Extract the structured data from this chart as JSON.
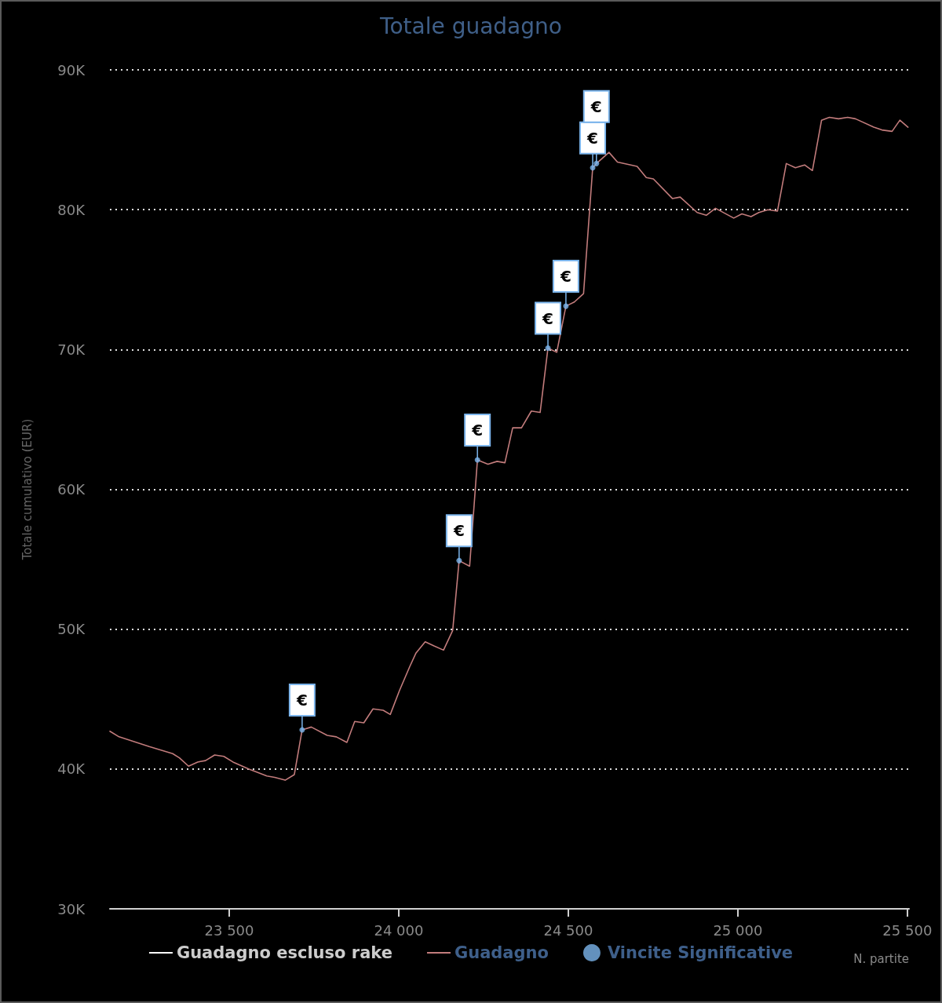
{
  "chart_data": {
    "type": "line",
    "title": "Totale guadagno",
    "xlabel": "N. partite",
    "ylabel": "Totale cumulativo (EUR)",
    "xlim": [
      23148,
      25505
    ],
    "xticks": [
      {
        "value": 23500,
        "label": "23 500"
      },
      {
        "value": 24000,
        "label": "24 000"
      },
      {
        "value": 24500,
        "label": "24 500"
      },
      {
        "value": 25000,
        "label": "25 000"
      },
      {
        "value": 25500,
        "label": "25 500"
      }
    ],
    "ylim": [
      30000,
      90000
    ],
    "yticks": [
      {
        "value": 30000,
        "label": "30K"
      },
      {
        "value": 40000,
        "label": "40K"
      },
      {
        "value": 50000,
        "label": "50K"
      },
      {
        "value": 60000,
        "label": "60K"
      },
      {
        "value": 70000,
        "label": "70K"
      },
      {
        "value": 80000,
        "label": "80K"
      },
      {
        "value": 90000,
        "label": "90K"
      }
    ],
    "grid": "y",
    "legend": "bottom",
    "series": [
      {
        "name": "Guadagno escluso rake",
        "color": "#ffffff"
      },
      {
        "name": "Guadagno",
        "color": "#c27c7c",
        "x": [
          23148,
          23175,
          23264,
          23333,
          23353,
          23380,
          23407,
          23430,
          23457,
          23484,
          23511,
          23557,
          23611,
          23634,
          23665,
          23692,
          23715,
          23742,
          23789,
          23816,
          23847,
          23870,
          23897,
          23924,
          23954,
          23975,
          24002,
          24032,
          24051,
          24078,
          24104,
          24132,
          24159,
          24178,
          24209,
          24232,
          24263,
          24290,
          24313,
          24336,
          24362,
          24391,
          24417,
          24440,
          24466,
          24493,
          24518,
          24545,
          24572,
          24583,
          24620,
          24645,
          24703,
          24730,
          24751,
          24807,
          24830,
          24880,
          24907,
          24934,
          24988,
          25012,
          25039,
          25062,
          25089,
          25117,
          25143,
          25170,
          25197,
          25220,
          25247,
          25270,
          25297,
          25324,
          25347,
          25401,
          25425,
          25455,
          25478,
          25502
        ],
        "values": [
          42700,
          42300,
          41600,
          41100,
          40800,
          40200,
          40500,
          40600,
          41000,
          40900,
          40500,
          40000,
          39500,
          39400,
          39200,
          39600,
          42800,
          43000,
          42400,
          42300,
          41900,
          43400,
          43300,
          44300,
          44200,
          43900,
          45600,
          47300,
          48300,
          49100,
          48800,
          48500,
          49900,
          54900,
          54500,
          62100,
          61800,
          62000,
          61900,
          64400,
          64400,
          65600,
          65500,
          70100,
          69800,
          73100,
          73400,
          74000,
          83000,
          83300,
          84100,
          83400,
          83100,
          82300,
          82200,
          80800,
          80900,
          79800,
          79600,
          80100,
          79400,
          79700,
          79500,
          79800,
          80000,
          79900,
          83300,
          83000,
          83200,
          82800,
          86400,
          86600,
          86500,
          86600,
          86500,
          85900,
          85700,
          85600,
          86400,
          85900
        ]
      },
      {
        "name": "Vincite Significative",
        "type": "scatter",
        "marker": "circle",
        "color": "#7cb5ec",
        "x": [
          23715,
          24178,
          24232,
          24440,
          24493,
          24572,
          24583
        ],
        "values": [
          42800,
          54900,
          62100,
          70100,
          73100,
          83000,
          83300
        ]
      }
    ],
    "annotations": [
      {
        "text": "€",
        "x": 23715,
        "y": 42800
      },
      {
        "text": "€",
        "x": 24178,
        "y": 54900
      },
      {
        "text": "€",
        "x": 24232,
        "y": 62100
      },
      {
        "text": "€",
        "x": 24440,
        "y": 70100
      },
      {
        "text": "€",
        "x": 24493,
        "y": 73100
      },
      {
        "text": "€",
        "x": 24572,
        "y": 83000
      },
      {
        "text": "€",
        "x": 24583,
        "y": 83300
      }
    ]
  }
}
